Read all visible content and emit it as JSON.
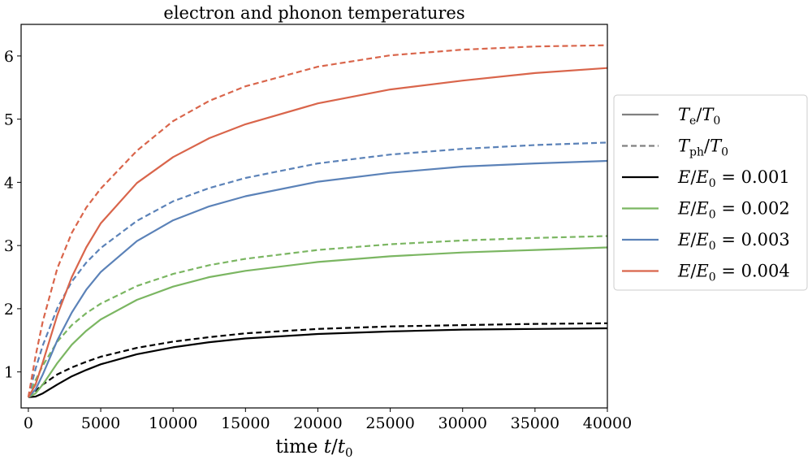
{
  "chart_data": {
    "type": "line",
    "title": "electron and phonon temperatures",
    "xlabel": "time t/t0",
    "xlabel_parts": {
      "prefix": "time ",
      "var": "t",
      "sep": "/",
      "base": "t",
      "sub": "0"
    },
    "ylabel": "",
    "xlim": [
      -500,
      40000
    ],
    "ylim": [
      0.43,
      6.5
    ],
    "xticks": [
      0,
      5000,
      10000,
      15000,
      20000,
      25000,
      30000,
      35000,
      40000
    ],
    "xtick_labels": [
      "0",
      "5000",
      "10000",
      "15000",
      "20000",
      "25000",
      "30000",
      "35000",
      "40000"
    ],
    "yticks": [
      1,
      2,
      3,
      4,
      5,
      6
    ],
    "ytick_labels": [
      "1",
      "2",
      "3",
      "4",
      "5",
      "6"
    ],
    "grid": false,
    "legend_position": "right, outside plot",
    "legend": [
      {
        "label": "Te/T0",
        "parts": {
          "var": "T",
          "sub": "e",
          "sep": "/",
          "base": "T",
          "sub2": "0"
        },
        "style": "solid",
        "color": "#808080"
      },
      {
        "label": "Tph/T0",
        "parts": {
          "var": "T",
          "sub": "ph",
          "sep": "/",
          "base": "T",
          "sub2": "0"
        },
        "style": "dashed",
        "color": "#808080"
      },
      {
        "label": "E/E0 = 0.001",
        "parts": {
          "var": "E",
          "sep": "/",
          "base": "E",
          "sub2": "0",
          "rhs": " = 0.001"
        },
        "style": "solid",
        "color": "#000000"
      },
      {
        "label": "E/E0 = 0.002",
        "parts": {
          "var": "E",
          "sep": "/",
          "base": "E",
          "sub2": "0",
          "rhs": " = 0.002"
        },
        "style": "solid",
        "color": "#7bb662"
      },
      {
        "label": "E/E0 = 0.003",
        "parts": {
          "var": "E",
          "sep": "/",
          "base": "E",
          "sub2": "0",
          "rhs": " = 0.003"
        },
        "style": "solid",
        "color": "#5b82b8"
      },
      {
        "label": "E/E0 = 0.004",
        "parts": {
          "var": "E",
          "sep": "/",
          "base": "E",
          "sub2": "0",
          "rhs": " = 0.004"
        },
        "style": "solid",
        "color": "#d9654b"
      }
    ],
    "series": [
      {
        "group": "E/E0 = 0.001",
        "quantity": "Te",
        "style": "solid",
        "color": "#000000",
        "x": [
          0,
          500,
          1000,
          2000,
          3000,
          4000,
          5000,
          7500,
          10000,
          12500,
          15000,
          20000,
          25000,
          30000,
          35000,
          40000
        ],
        "y": [
          0.6,
          0.61,
          0.66,
          0.8,
          0.93,
          1.03,
          1.12,
          1.28,
          1.39,
          1.47,
          1.53,
          1.6,
          1.64,
          1.67,
          1.68,
          1.69
        ]
      },
      {
        "group": "E/E0 = 0.001",
        "quantity": "Tph",
        "style": "dashed",
        "color": "#000000",
        "x": [
          0,
          500,
          1000,
          2000,
          3000,
          4000,
          5000,
          7500,
          10000,
          12500,
          15000,
          20000,
          25000,
          30000,
          35000,
          40000
        ],
        "y": [
          0.6,
          0.7,
          0.8,
          0.96,
          1.07,
          1.16,
          1.24,
          1.38,
          1.48,
          1.55,
          1.61,
          1.68,
          1.72,
          1.74,
          1.76,
          1.77
        ]
      },
      {
        "group": "E/E0 = 0.002",
        "quantity": "Te",
        "style": "solid",
        "color": "#7bb662",
        "x": [
          0,
          500,
          1000,
          2000,
          3000,
          4000,
          5000,
          7500,
          10000,
          12500,
          15000,
          20000,
          25000,
          30000,
          35000,
          40000
        ],
        "y": [
          0.6,
          0.66,
          0.8,
          1.14,
          1.43,
          1.65,
          1.83,
          2.14,
          2.35,
          2.5,
          2.6,
          2.74,
          2.83,
          2.89,
          2.93,
          2.97
        ]
      },
      {
        "group": "E/E0 = 0.002",
        "quantity": "Tph",
        "style": "dashed",
        "color": "#7bb662",
        "x": [
          0,
          500,
          1000,
          2000,
          3000,
          4000,
          5000,
          7500,
          10000,
          12500,
          15000,
          20000,
          25000,
          30000,
          35000,
          40000
        ],
        "y": [
          0.6,
          0.87,
          1.1,
          1.48,
          1.74,
          1.93,
          2.08,
          2.36,
          2.55,
          2.69,
          2.79,
          2.93,
          3.02,
          3.08,
          3.12,
          3.15
        ]
      },
      {
        "group": "E/E0 = 0.003",
        "quantity": "Te",
        "style": "solid",
        "color": "#5b82b8",
        "x": [
          0,
          500,
          1000,
          2000,
          3000,
          4000,
          5000,
          7500,
          10000,
          12500,
          15000,
          20000,
          25000,
          30000,
          35000,
          40000
        ],
        "y": [
          0.6,
          0.72,
          0.96,
          1.5,
          1.94,
          2.3,
          2.58,
          3.07,
          3.4,
          3.62,
          3.78,
          4.01,
          4.15,
          4.25,
          4.3,
          4.34
        ]
      },
      {
        "group": "E/E0 = 0.003",
        "quantity": "Tph",
        "style": "dashed",
        "color": "#5b82b8",
        "x": [
          0,
          500,
          1000,
          2000,
          3000,
          4000,
          5000,
          7500,
          10000,
          12500,
          15000,
          20000,
          25000,
          30000,
          35000,
          40000
        ],
        "y": [
          0.6,
          1.05,
          1.42,
          2.01,
          2.43,
          2.73,
          2.96,
          3.39,
          3.7,
          3.91,
          4.07,
          4.3,
          4.44,
          4.53,
          4.59,
          4.63
        ]
      },
      {
        "group": "E/E0 = 0.004",
        "quantity": "Te",
        "style": "solid",
        "color": "#d9654b",
        "x": [
          0,
          500,
          1000,
          2000,
          3000,
          4000,
          5000,
          7500,
          10000,
          12500,
          15000,
          20000,
          25000,
          30000,
          35000,
          40000
        ],
        "y": [
          0.6,
          0.8,
          1.15,
          1.9,
          2.5,
          2.97,
          3.35,
          3.99,
          4.4,
          4.7,
          4.92,
          5.25,
          5.47,
          5.61,
          5.73,
          5.81
        ]
      },
      {
        "group": "E/E0 = 0.004",
        "quantity": "Tph",
        "style": "dashed",
        "color": "#d9654b",
        "x": [
          0,
          500,
          1000,
          2000,
          3000,
          4000,
          5000,
          7500,
          10000,
          12500,
          15000,
          20000,
          25000,
          30000,
          35000,
          40000
        ],
        "y": [
          0.6,
          1.25,
          1.8,
          2.64,
          3.2,
          3.6,
          3.9,
          4.5,
          4.97,
          5.29,
          5.52,
          5.83,
          6.01,
          6.1,
          6.15,
          6.17
        ]
      }
    ]
  }
}
